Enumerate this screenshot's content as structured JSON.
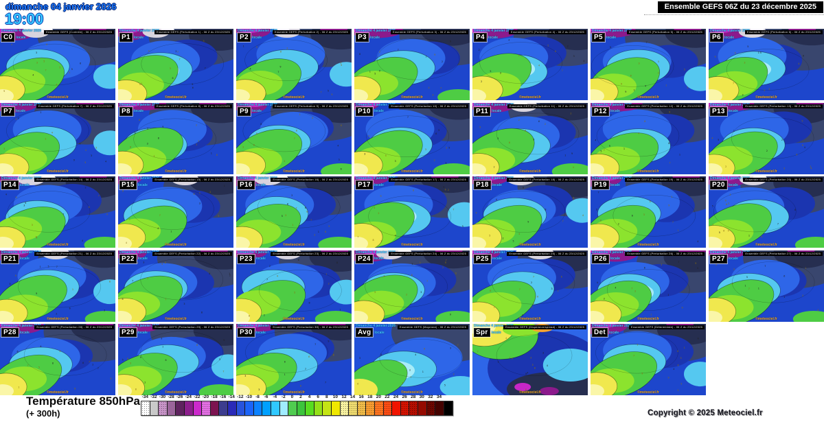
{
  "header": {
    "date": "dimanche 04 janvier 2026",
    "time": "19:00",
    "title": "Ensemble GEFS 06Z du 23 décembre 2025"
  },
  "tile_common": {
    "date_line1": "Dimanche 4 janvier 2026",
    "time_label": "locale",
    "watermark": "©meteociel.fr"
  },
  "tiles": [
    {
      "label": "C0",
      "strip": "Ensemble GEFS (Contrôle) - 06 Z du 23/12/2025",
      "variant": "normal"
    },
    {
      "label": "P1",
      "strip": "Ensemble GEFS (Perturbation 1) - 06 Z du 23/12/2025",
      "variant": "normal"
    },
    {
      "label": "P2",
      "strip": "Ensemble GEFS (Perturbation 2) - 06 Z du 23/12/2025",
      "variant": "normal"
    },
    {
      "label": "P3",
      "strip": "Ensemble GEFS (Perturbation 3) - 06 Z du 23/12/2025",
      "variant": "normal"
    },
    {
      "label": "P4",
      "strip": "Ensemble GEFS (Perturbation 4) - 06 Z du 23/12/2025",
      "variant": "normal"
    },
    {
      "label": "P5",
      "strip": "Ensemble GEFS (Perturbation 5) - 06 Z du 23/12/2025",
      "variant": "normal"
    },
    {
      "label": "P6",
      "strip": "Ensemble GEFS (Perturbation 6) - 06 Z du 23/12/2025",
      "variant": "normal"
    },
    {
      "label": "P7",
      "strip": "Ensemble GEFS (Perturbation 7) - 06 Z du 23/12/2025",
      "variant": "normal"
    },
    {
      "label": "P8",
      "strip": "Ensemble GEFS (Perturbation 8) - 06 Z du 23/12/2025",
      "variant": "normal"
    },
    {
      "label": "P9",
      "strip": "Ensemble GEFS (Perturbation 9) - 06 Z du 23/12/2025",
      "variant": "normal"
    },
    {
      "label": "P10",
      "strip": "Ensemble GEFS (Perturbation 10) - 06 Z du 23/12/2025",
      "variant": "normal"
    },
    {
      "label": "P11",
      "strip": "Ensemble GEFS (Perturbation 11) - 06 Z du 23/12/2025",
      "variant": "normal"
    },
    {
      "label": "P12",
      "strip": "Ensemble GEFS (Perturbation 12) - 06 Z du 23/12/2025",
      "variant": "normal"
    },
    {
      "label": "P13",
      "strip": "Ensemble GEFS (Perturbation 13) - 06 Z du 23/12/2025",
      "variant": "normal"
    },
    {
      "label": "P14",
      "strip": "Ensemble GEFS (Perturbation 14) - 06 Z du 23/12/2025",
      "variant": "normal"
    },
    {
      "label": "P15",
      "strip": "Ensemble GEFS (Perturbation 15) - 06 Z du 23/12/2025",
      "variant": "cold"
    },
    {
      "label": "P16",
      "strip": "Ensemble GEFS (Perturbation 16) - 06 Z du 23/12/2025",
      "variant": "cold"
    },
    {
      "label": "P17",
      "strip": "Ensemble GEFS (Perturbation 17) - 06 Z du 23/12/2025",
      "variant": "normal"
    },
    {
      "label": "P18",
      "strip": "Ensemble GEFS (Perturbation 18) - 06 Z du 23/12/2025",
      "variant": "normal"
    },
    {
      "label": "P19",
      "strip": "Ensemble GEFS (Perturbation 19) - 06 Z du 23/12/2025",
      "variant": "normal"
    },
    {
      "label": "P20",
      "strip": "Ensemble GEFS (Perturbation 20) - 06 Z du 23/12/2025",
      "variant": "cold"
    },
    {
      "label": "P21",
      "strip": "Ensemble GEFS (Perturbation 21) - 06 Z du 23/12/2025",
      "variant": "normal"
    },
    {
      "label": "P22",
      "strip": "Ensemble GEFS (Perturbation 22) - 06 Z du 23/12/2025",
      "variant": "normal"
    },
    {
      "label": "P23",
      "strip": "Ensemble GEFS (Perturbation 23) - 06 Z du 23/12/2025",
      "variant": "cold"
    },
    {
      "label": "P24",
      "strip": "Ensemble GEFS (Perturbation 24) - 06 Z du 23/12/2025",
      "variant": "cold"
    },
    {
      "label": "P25",
      "strip": "Ensemble GEFS (Perturbation 25) - 06 Z du 23/12/2025",
      "variant": "cold"
    },
    {
      "label": "P26",
      "strip": "Ensemble GEFS (Perturbation 26) - 06 Z du 23/12/2025",
      "variant": "normal"
    },
    {
      "label": "P27",
      "strip": "Ensemble GEFS (Perturbation 27) - 06 Z du 23/12/2025",
      "variant": "normal"
    },
    {
      "label": "P28",
      "strip": "Ensemble GEFS (Perturbation 28) - 06 Z du 23/12/2025",
      "variant": "normal"
    },
    {
      "label": "P29",
      "strip": "Ensemble GEFS (Perturbation 29) - 06 Z du 23/12/2025",
      "variant": "normal"
    },
    {
      "label": "P30",
      "strip": "Ensemble GEFS (Perturbation 30) - 06 Z du 23/12/2025",
      "variant": "normal"
    },
    {
      "label": "Avg",
      "strip": "Ensemble GEFS (Moyenne) - 06 Z du 23/12/2025",
      "variant": "avg"
    },
    {
      "label": "Spr",
      "strip": "Ensemble GEFS (Dispersion/spread) - 06 Z du 23/12/2025",
      "variant": "spread"
    },
    {
      "label": "Det",
      "strip": "Ensemble GEFS (Déterministe) - 06 Z du 23/12/2025",
      "variant": "normal"
    }
  ],
  "legend": {
    "title": "Température 850hPa",
    "subtitle": "(+ 300h)",
    "cells": [
      {
        "label": "-34",
        "color": "#fcfcfc",
        "dotted": true
      },
      {
        "label": "-32",
        "color": "#c9c9c9",
        "dotted": false
      },
      {
        "label": "-30",
        "color": "#c894c8",
        "dotted": true
      },
      {
        "label": "-28",
        "color": "#9a649a",
        "dotted": false
      },
      {
        "label": "-26",
        "color": "#5e235e",
        "dotted": false
      },
      {
        "label": "-24",
        "color": "#8c1f8c",
        "dotted": false
      },
      {
        "label": "-22",
        "color": "#cc29cc",
        "dotted": false
      },
      {
        "label": "-20",
        "color": "#e470e4",
        "dotted": true
      },
      {
        "label": "-18",
        "color": "#7c1450",
        "dotted": false
      },
      {
        "label": "-16",
        "color": "#3c3c8e",
        "dotted": false
      },
      {
        "label": "-14",
        "color": "#2a2ab8",
        "dotted": false
      },
      {
        "label": "-12",
        "color": "#2853dc",
        "dotted": false
      },
      {
        "label": "-10",
        "color": "#1c64f8",
        "dotted": false
      },
      {
        "label": "-8",
        "color": "#0c82ff",
        "dotted": false
      },
      {
        "label": "-6",
        "color": "#00a0ff",
        "dotted": false
      },
      {
        "label": "-4",
        "color": "#30c8ff",
        "dotted": false
      },
      {
        "label": "-2",
        "color": "#a0ecff",
        "dotted": false
      },
      {
        "label": "0",
        "color": "#50cc50",
        "dotted": false
      },
      {
        "label": "2",
        "color": "#3cc43c",
        "dotted": false
      },
      {
        "label": "4",
        "color": "#58dc20",
        "dotted": false
      },
      {
        "label": "6",
        "color": "#94e018",
        "dotted": false
      },
      {
        "label": "8",
        "color": "#c4e414",
        "dotted": false
      },
      {
        "label": "10",
        "color": "#f0e800",
        "dotted": false
      },
      {
        "label": "12",
        "color": "#f8f2a0",
        "dotted": true
      },
      {
        "label": "14",
        "color": "#f0dc70",
        "dotted": true
      },
      {
        "label": "16",
        "color": "#f0bc48",
        "dotted": true
      },
      {
        "label": "18",
        "color": "#f89c30",
        "dotted": true
      },
      {
        "label": "20",
        "color": "#ff7420",
        "dotted": true
      },
      {
        "label": "22",
        "color": "#fc4c14",
        "dotted": true
      },
      {
        "label": "24",
        "color": "#f01400",
        "dotted": false
      },
      {
        "label": "26",
        "color": "#d41200",
        "dotted": true
      },
      {
        "label": "28",
        "color": "#b40e00",
        "dotted": true
      },
      {
        "label": "30",
        "color": "#940a00",
        "dotted": false
      },
      {
        "label": "32",
        "color": "#6c0600",
        "dotted": true
      },
      {
        "label": "34",
        "color": "#440200",
        "dotted": false
      },
      {
        "label": "",
        "color": "#000000",
        "dotted": false
      }
    ]
  },
  "footer": {
    "copyright": "Copyright © 2025 Meteociel.fr"
  },
  "map_palette": {
    "base_blue": "#1d46cc",
    "navy": "#1b35b0",
    "mid_blue": "#2e66e8",
    "cyan": "#55c8f0",
    "pale_cyan": "#a8ecf8",
    "green": "#4ecc44",
    "bright_green": "#8ce32e",
    "yellow": "#f0e84e",
    "pale_yellow": "#faf6a8",
    "slate": "#39466e",
    "dark_slate": "#262e50",
    "purple": "#8c1a8c",
    "magenta": "#c726c7",
    "cold_white": "#e6e3ea",
    "orange": "#f0a030"
  }
}
